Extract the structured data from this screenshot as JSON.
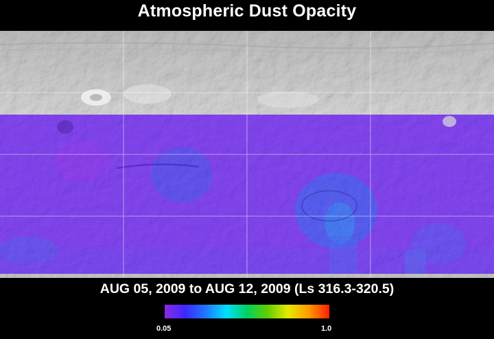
{
  "title": "Atmospheric Dust Opacity",
  "date_range": "AUG 05, 2009 to AUG 12, 2009 (Ls 316.3-320.5)",
  "colorbar": {
    "min_label": "0.05",
    "max_label": "1.0",
    "colors": [
      "#8a2be2",
      "#3c28ff",
      "#1f78ff",
      "#00e0ff",
      "#00d060",
      "#60d000",
      "#e8e800",
      "#ff9a00",
      "#ff2000"
    ]
  },
  "map": {
    "no_data_color": "#c8c8c8",
    "dust_base_color": "#6a38e8",
    "gridline_color": "#ffffff"
  }
}
